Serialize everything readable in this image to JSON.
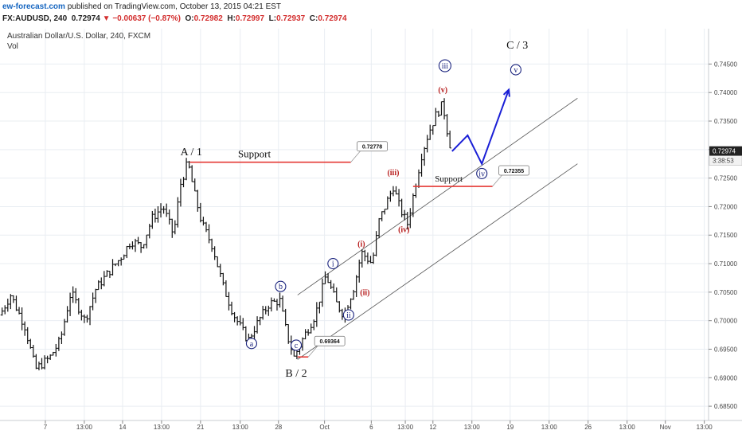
{
  "header": {
    "site": "ew-forecast.com",
    "published": "published on TradingView.com, October 13, 2015 04:21 EST",
    "symbol": "FX:AUDUSD, 240",
    "last": "0.72974",
    "change": "−0.00637 (−0.87%)",
    "open_label": "O:",
    "open": "0.72982",
    "high_label": "H:",
    "high": "0.72997",
    "low_label": "L:",
    "low": "0.72937",
    "close_label": "C:",
    "close": "0.72974"
  },
  "chart_data": {
    "type": "ohlc",
    "title": "Australian Dollar/U.S. Dollar, 240, FXCM",
    "subtitle": "Vol",
    "ylim": [
      0.6825,
      0.7512
    ],
    "xlim": [
      0,
      100
    ],
    "yticks": [
      "0.74500",
      "0.74000",
      "0.73500",
      "0.73000",
      "0.72500",
      "0.72000",
      "0.71500",
      "0.71000",
      "0.70500",
      "0.70000",
      "0.69500",
      "0.69000",
      "0.68500"
    ],
    "xticks": [
      {
        "x": 6.4,
        "label": "7"
      },
      {
        "x": 11.9,
        "label": "13:00"
      },
      {
        "x": 17.3,
        "label": "14"
      },
      {
        "x": 22.8,
        "label": "13:00"
      },
      {
        "x": 28.3,
        "label": "21"
      },
      {
        "x": 33.9,
        "label": "13:00"
      },
      {
        "x": 39.3,
        "label": "28"
      },
      {
        "x": 45.8,
        "label": "Oct"
      },
      {
        "x": 52.4,
        "label": "6"
      },
      {
        "x": 57.2,
        "label": "13:00"
      },
      {
        "x": 61.1,
        "label": "12"
      },
      {
        "x": 66.6,
        "label": "13:00"
      },
      {
        "x": 72.0,
        "label": "19"
      },
      {
        "x": 77.5,
        "label": "13:00"
      },
      {
        "x": 83.0,
        "label": "26"
      },
      {
        "x": 88.5,
        "label": "13:00"
      },
      {
        "x": 93.9,
        "label": "Nov"
      },
      {
        "x": 99.4,
        "label": "13:00"
      }
    ],
    "price_anchors": [
      [
        0.0,
        0.701
      ],
      [
        1.5,
        0.7045
      ],
      [
        3.5,
        0.699
      ],
      [
        5.0,
        0.6915
      ],
      [
        7.0,
        0.6935
      ],
      [
        8.5,
        0.6965
      ],
      [
        10.0,
        0.705
      ],
      [
        12.0,
        0.7
      ],
      [
        13.5,
        0.7055
      ],
      [
        15.0,
        0.708
      ],
      [
        17.0,
        0.711
      ],
      [
        18.5,
        0.714
      ],
      [
        20.0,
        0.713
      ],
      [
        21.5,
        0.718
      ],
      [
        23.0,
        0.72
      ],
      [
        24.5,
        0.715
      ],
      [
        25.5,
        0.724
      ],
      [
        26.5,
        0.7278
      ],
      [
        27.5,
        0.722
      ],
      [
        28.5,
        0.717
      ],
      [
        30.0,
        0.713
      ],
      [
        31.5,
        0.706
      ],
      [
        33.0,
        0.701
      ],
      [
        35.0,
        0.6965
      ],
      [
        36.5,
        0.7
      ],
      [
        38.0,
        0.703
      ],
      [
        39.5,
        0.7035
      ],
      [
        40.5,
        0.6975
      ],
      [
        41.5,
        0.6936
      ],
      [
        43.0,
        0.6975
      ],
      [
        44.5,
        0.701
      ],
      [
        46.0,
        0.708
      ],
      [
        47.5,
        0.703
      ],
      [
        48.5,
        0.701
      ],
      [
        50.0,
        0.706
      ],
      [
        51.0,
        0.712
      ],
      [
        52.5,
        0.71
      ],
      [
        53.5,
        0.7175
      ],
      [
        54.5,
        0.7205
      ],
      [
        55.5,
        0.7235
      ],
      [
        56.5,
        0.7195
      ],
      [
        57.5,
        0.717
      ],
      [
        58.5,
        0.723
      ],
      [
        59.5,
        0.729
      ],
      [
        60.5,
        0.733
      ],
      [
        61.5,
        0.736
      ],
      [
        62.5,
        0.738
      ],
      [
        63.0,
        0.734
      ],
      [
        63.7,
        0.7297
      ]
    ],
    "levels": [
      {
        "from": 26.8,
        "to": 49.5,
        "price": 0.72778,
        "color": "#e53935",
        "label": "Support",
        "tag": "0.72778"
      },
      {
        "from": 58.3,
        "to": 69.5,
        "price": 0.72355,
        "color": "#e53935",
        "label": "Support",
        "tag": "0.72355"
      },
      {
        "from": 42.0,
        "to": 43.5,
        "price": 0.69364,
        "color": "#e53935",
        "tag": "0.69364"
      }
    ],
    "channel": [
      {
        "from": [
          42.0,
          0.7045
        ],
        "to": [
          81.5,
          0.739
        ]
      },
      {
        "from": [
          42.0,
          0.6932
        ],
        "to": [
          81.5,
          0.7275
        ]
      }
    ],
    "projection": [
      [
        63.8,
        0.7297
      ],
      [
        66.0,
        0.7325
      ],
      [
        68.0,
        0.7275
      ],
      [
        71.8,
        0.7405
      ]
    ],
    "last_price": {
      "value": 0.72974,
      "label": "0.72974",
      "time": "3:38:53"
    },
    "wave_labels": [
      {
        "x": 27.0,
        "y": 0.729,
        "text": "A / 1",
        "style": "big"
      },
      {
        "x": 41.8,
        "y": 0.6902,
        "text": "B / 2",
        "style": "big"
      },
      {
        "x": 73.0,
        "y": 0.7477,
        "text": "C / 3",
        "style": "big"
      },
      {
        "x": 35.5,
        "y": 0.696,
        "text": "a",
        "style": "blue-circle"
      },
      {
        "x": 39.6,
        "y": 0.706,
        "text": "b",
        "style": "blue-circle"
      },
      {
        "x": 41.8,
        "y": 0.6957,
        "text": "c",
        "style": "blue-circle"
      },
      {
        "x": 47.0,
        "y": 0.71,
        "text": "i",
        "style": "blue-circle"
      },
      {
        "x": 49.2,
        "y": 0.701,
        "text": "ii",
        "style": "blue-circle"
      },
      {
        "x": 62.8,
        "y": 0.7447,
        "text": "iii",
        "style": "blue-circle"
      },
      {
        "x": 68.0,
        "y": 0.7258,
        "text": "iv",
        "style": "blue-circle"
      },
      {
        "x": 72.8,
        "y": 0.744,
        "text": "v",
        "style": "blue-circle"
      },
      {
        "x": 51.0,
        "y": 0.713,
        "text": "(i)",
        "style": "red"
      },
      {
        "x": 51.5,
        "y": 0.7045,
        "text": "(ii)",
        "style": "red"
      },
      {
        "x": 55.5,
        "y": 0.7255,
        "text": "(iii)",
        "style": "red"
      },
      {
        "x": 57.0,
        "y": 0.7155,
        "text": "(iv)",
        "style": "red"
      },
      {
        "x": 62.5,
        "y": 0.74,
        "text": "(v)",
        "style": "red"
      }
    ]
  },
  "colors": {
    "candle": "#111111",
    "grid": "#e9edf2",
    "level": "#e53935",
    "wave_blue": "#1a237e",
    "wave_red": "#b71c1c",
    "projection": "#1a1fd6",
    "channel": "#555555",
    "price_tag": "#222222"
  }
}
